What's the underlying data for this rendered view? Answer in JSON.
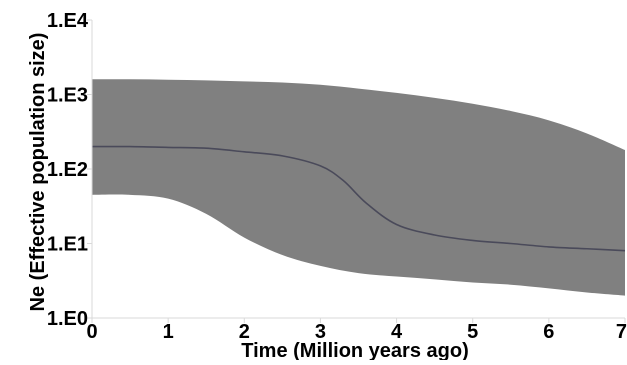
{
  "chart_data": {
    "type": "area",
    "title": "",
    "xlabel": "Time (Million years ago)",
    "ylabel": "Ne (Effective population size)",
    "xlim": [
      0,
      7
    ],
    "ylim_log10": [
      0,
      4
    ],
    "y_scale": "log",
    "grid": false,
    "x_ticks": [
      0,
      1,
      2,
      3,
      4,
      5,
      6,
      7
    ],
    "x_tick_labels": [
      "0",
      "1",
      "2",
      "3",
      "4",
      "5",
      "6",
      "7"
    ],
    "y_ticks_log10": [
      0,
      1,
      2,
      3,
      4
    ],
    "y_tick_labels": [
      "1.E0",
      "1.E1",
      "1.E2",
      "1.E3",
      "1.E4"
    ],
    "colors": {
      "band": "#808080",
      "median": "#4a4a5a",
      "axis": "#d9d9d9",
      "text": "#000000"
    },
    "upper_bound": {
      "x": [
        0,
        0.5,
        1,
        1.5,
        2,
        2.5,
        3,
        3.5,
        4,
        4.5,
        5,
        5.5,
        6,
        6.5,
        7
      ],
      "y": [
        1600,
        1600,
        1580,
        1550,
        1500,
        1450,
        1350,
        1200,
        1050,
        900,
        750,
        600,
        450,
        300,
        180
      ]
    },
    "median": {
      "x": [
        0,
        0.5,
        1,
        1.5,
        2,
        2.5,
        3,
        3.3,
        3.6,
        4,
        4.5,
        5,
        5.5,
        6,
        6.5,
        7
      ],
      "y": [
        200,
        200,
        195,
        190,
        170,
        150,
        110,
        70,
        35,
        18,
        13,
        11,
        10,
        9,
        8.5,
        8
      ]
    },
    "lower_bound": {
      "x": [
        0,
        0.5,
        1,
        1.5,
        2,
        2.5,
        3,
        3.5,
        4,
        4.5,
        5,
        5.5,
        6,
        6.5,
        7
      ],
      "y": [
        45,
        45,
        40,
        25,
        12,
        7,
        5,
        4,
        3.6,
        3.3,
        3,
        2.8,
        2.5,
        2.2,
        2
      ]
    }
  }
}
